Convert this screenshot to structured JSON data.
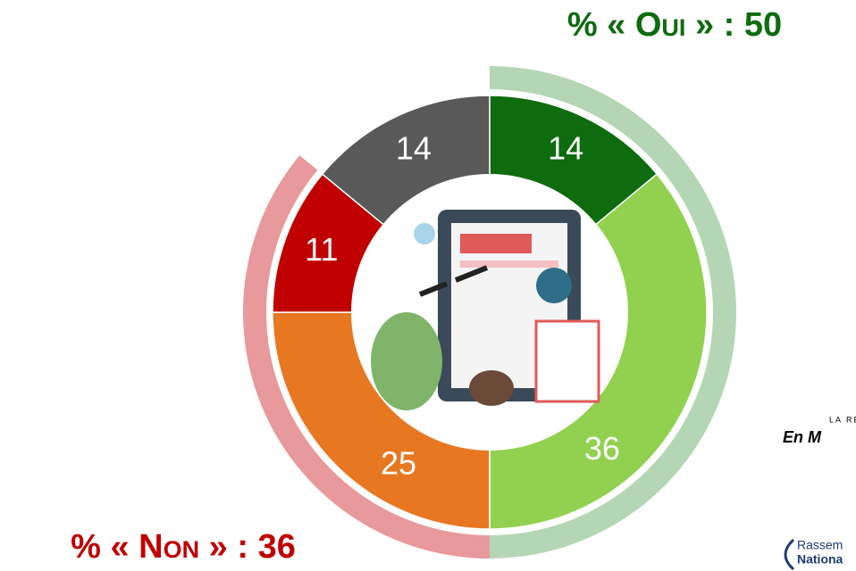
{
  "chart_data": {
    "type": "donut",
    "categories": [
      "Oui dark",
      "Oui light",
      "Non orange",
      "Non red",
      "Other"
    ],
    "series": [
      {
        "values": [
          14,
          36,
          25,
          11,
          14
        ],
        "colors": [
          "#0e6b0e",
          "#92d050",
          "#e87722",
          "#c00000",
          "#595959"
        ]
      }
    ],
    "outer_series": [
      {
        "name": "% « Oui » : 50",
        "value": 50,
        "color": "#b5d6b5",
        "text_color": "#0e6b0e"
      },
      {
        "name": "% « Non » : 36",
        "value": 36,
        "color": "#e8999b",
        "text_color": "#c00000"
      }
    ],
    "total": 100,
    "annotations": [
      "LA RE",
      "En M",
      "Rassem",
      "Nationa"
    ]
  }
}
